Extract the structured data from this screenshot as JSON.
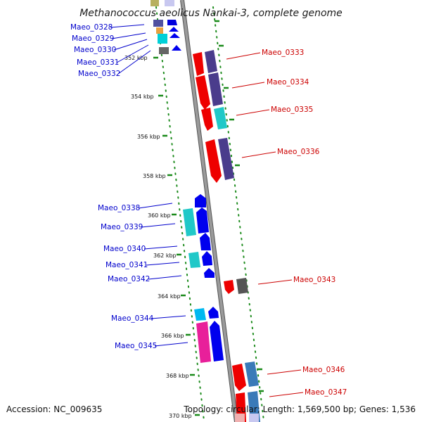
{
  "title": "Methanococcus aeolicus Nankai-3, complete genome",
  "accession": "Accession: NC_009635",
  "summary": "Topology: circular; Length: 1,569,500 bp; Genes: 1,536",
  "colors": {
    "forward_label": "#0000cc",
    "reverse_label": "#cc0000",
    "backbone": "#8a8a8a",
    "tick": "#1a8a1a",
    "dots": "#1a8a1a"
  },
  "ticks": [
    "352 kbp",
    "354 kbp",
    "356 kbp",
    "358 kbp",
    "360 kbp",
    "362 kbp",
    "364 kbp",
    "366 kbp",
    "368 kbp",
    "370 kbp"
  ],
  "forward_labels": [
    "Maeo_0328",
    "Maeo_0329",
    "Maeo_0330",
    "Maeo_0331",
    "Maeo_0332",
    "Maeo_0338",
    "Maeo_0339",
    "Maeo_0340",
    "Maeo_0341",
    "Maeo_0342",
    "Maeo_0344",
    "Maeo_0345"
  ],
  "reverse_labels": [
    "Maeo_0333",
    "Maeo_0334",
    "Maeo_0335",
    "Maeo_0336",
    "Maeo_0343",
    "Maeo_0346",
    "Maeo_0347"
  ]
}
